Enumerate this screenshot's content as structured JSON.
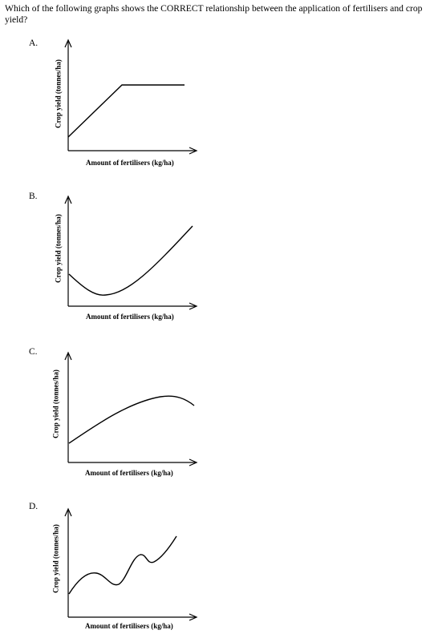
{
  "question": "Which of the following graphs shows the CORRECT relationship between the application of fertilisers and crop yield?",
  "options": [
    {
      "label": "A.",
      "ylabel": "Crop yield (tonnes/ha)",
      "xlabel": "Amount of fertilisers (kg/ha)",
      "curve": "linear increase then plateau"
    },
    {
      "label": "B.",
      "ylabel": "Crop yield (tonnes/ha)",
      "xlabel": "Amount of fertilisers (kg/ha)",
      "curve": "dip then increase"
    },
    {
      "label": "C.",
      "ylabel": "Crop yield (tonnes/ha)",
      "xlabel": "Amount of fertilisers (kg/ha)",
      "curve": "rise to peak then slight decline"
    },
    {
      "label": "D.",
      "ylabel": "Crop yield (tonnes/ha)",
      "xlabel": "Amount of fertilisers (kg/ha)",
      "curve": "wavy increase"
    }
  ]
}
